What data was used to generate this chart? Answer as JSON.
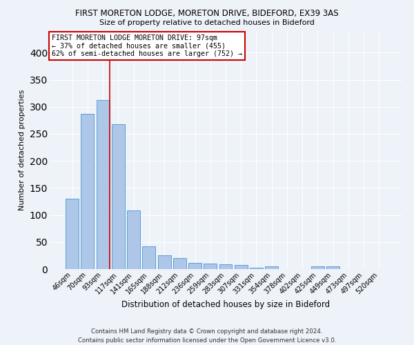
{
  "title": "FIRST MORETON LODGE, MORETON DRIVE, BIDEFORD, EX39 3AS",
  "subtitle": "Size of property relative to detached houses in Bideford",
  "xlabel": "Distribution of detached houses by size in Bideford",
  "ylabel": "Number of detached properties",
  "footer": "Contains HM Land Registry data © Crown copyright and database right 2024.\nContains public sector information licensed under the Open Government Licence v3.0.",
  "bar_labels": [
    "46sqm",
    "70sqm",
    "93sqm",
    "117sqm",
    "141sqm",
    "165sqm",
    "188sqm",
    "212sqm",
    "236sqm",
    "259sqm",
    "283sqm",
    "307sqm",
    "331sqm",
    "354sqm",
    "378sqm",
    "402sqm",
    "425sqm",
    "449sqm",
    "473sqm",
    "497sqm",
    "520sqm"
  ],
  "bar_values": [
    130,
    287,
    313,
    268,
    108,
    42,
    25,
    21,
    11,
    10,
    9,
    8,
    3,
    5,
    0,
    0,
    5,
    5,
    0,
    0,
    0
  ],
  "bar_color": "#aec6e8",
  "bar_edge_color": "#5a9fd4",
  "annotation_line1": "FIRST MORETON LODGE MORETON DRIVE: 97sqm",
  "annotation_line2": "← 37% of detached houses are smaller (455)",
  "annotation_line3": "62% of semi-detached houses are larger (752) →",
  "vline_color": "#cc0000",
  "annotation_box_color": "#ffffff",
  "annotation_box_edge": "#cc0000",
  "background_color": "#eef2f9",
  "ylim": [
    0,
    440
  ],
  "yticks": [
    0,
    50,
    100,
    150,
    200,
    250,
    300,
    350,
    400
  ]
}
